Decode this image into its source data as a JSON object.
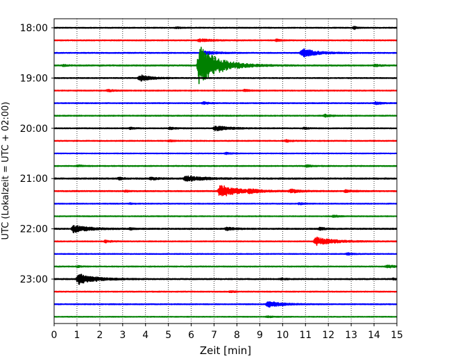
{
  "chart_data": {
    "type": "line",
    "subtype": "helicorder-seismogram",
    "xlabel": "Zeit  [min]",
    "ylabel": "UTC (Lokalzeit = UTC + 02:00)",
    "xlim": [
      0,
      15
    ],
    "x_ticks": [
      0,
      1,
      2,
      3,
      4,
      5,
      6,
      7,
      8,
      9,
      10,
      11,
      12,
      13,
      14,
      15
    ],
    "x_grid": "dotted vertical at each minute",
    "y_tick_labels": [
      "18:00",
      "19:00",
      "20:00",
      "21:00",
      "22:00",
      "23:00"
    ],
    "trace_minutes": 15,
    "trace_count": 24,
    "trace_color_cycle": [
      "#000000",
      "#ff0000",
      "#0000ff",
      "#008000"
    ],
    "traces": [
      {
        "start": "18:00",
        "noise": 0.1,
        "events": [
          {
            "t": 5.3,
            "amp": 0.25,
            "dur": 0.4
          },
          {
            "t": 13.1,
            "amp": 0.55,
            "dur": 0.25
          }
        ]
      },
      {
        "start": "18:15",
        "noise": 0.1,
        "events": [
          {
            "t": 6.3,
            "amp": 0.35,
            "dur": 1.2
          },
          {
            "t": 9.7,
            "amp": 0.35,
            "dur": 0.4
          }
        ]
      },
      {
        "start": "18:30",
        "noise": 0.1,
        "events": [
          {
            "t": 6.4,
            "amp": 0.5,
            "dur": 1.2
          },
          {
            "t": 10.8,
            "amp": 1.2,
            "dur": 1.3
          }
        ]
      },
      {
        "start": "18:45",
        "noise": 0.12,
        "events": [
          {
            "t": 0.4,
            "amp": 0.3,
            "dur": 0.3
          },
          {
            "t": 6.3,
            "amp": 5.5,
            "dur": 1.7
          },
          {
            "t": 14.0,
            "amp": 0.3,
            "dur": 0.5
          }
        ]
      },
      {
        "start": "19:00",
        "noise": 0.1,
        "events": [
          {
            "t": 3.7,
            "amp": 0.9,
            "dur": 1.0
          }
        ]
      },
      {
        "start": "19:15",
        "noise": 0.1,
        "events": [
          {
            "t": 2.3,
            "amp": 0.4,
            "dur": 0.5
          },
          {
            "t": 8.3,
            "amp": 0.35,
            "dur": 0.4
          }
        ]
      },
      {
        "start": "19:30",
        "noise": 0.1,
        "events": [
          {
            "t": 6.5,
            "amp": 0.35,
            "dur": 0.5
          },
          {
            "t": 14.0,
            "amp": 0.35,
            "dur": 0.6
          }
        ]
      },
      {
        "start": "19:45",
        "noise": 0.1,
        "events": [
          {
            "t": 11.8,
            "amp": 0.4,
            "dur": 0.5
          }
        ]
      },
      {
        "start": "20:00",
        "noise": 0.1,
        "events": [
          {
            "t": 3.3,
            "amp": 0.3,
            "dur": 0.4
          },
          {
            "t": 5.0,
            "amp": 0.35,
            "dur": 0.6
          },
          {
            "t": 7.0,
            "amp": 0.65,
            "dur": 1.3
          },
          {
            "t": 10.9,
            "amp": 0.3,
            "dur": 0.4
          }
        ]
      },
      {
        "start": "20:15",
        "noise": 0.1,
        "events": [
          {
            "t": 5.0,
            "amp": 0.25,
            "dur": 0.4
          },
          {
            "t": 10.1,
            "amp": 0.35,
            "dur": 0.5
          }
        ]
      },
      {
        "start": "20:30",
        "noise": 0.08,
        "events": [
          {
            "t": 7.5,
            "amp": 0.3,
            "dur": 0.4
          }
        ]
      },
      {
        "start": "20:45",
        "noise": 0.1,
        "events": [
          {
            "t": 1.0,
            "amp": 0.3,
            "dur": 0.4
          },
          {
            "t": 11.0,
            "amp": 0.35,
            "dur": 0.5
          }
        ]
      },
      {
        "start": "21:00",
        "noise": 0.14,
        "events": [
          {
            "t": 2.8,
            "amp": 0.35,
            "dur": 0.4
          },
          {
            "t": 4.2,
            "amp": 0.35,
            "dur": 0.6
          },
          {
            "t": 5.7,
            "amp": 0.75,
            "dur": 1.5
          }
        ]
      },
      {
        "start": "21:15",
        "noise": 0.12,
        "events": [
          {
            "t": 3.1,
            "amp": 0.3,
            "dur": 0.3
          },
          {
            "t": 7.2,
            "amp": 1.6,
            "dur": 1.6
          },
          {
            "t": 8.5,
            "amp": 0.35,
            "dur": 1.0
          },
          {
            "t": 10.3,
            "amp": 0.45,
            "dur": 1.0
          },
          {
            "t": 12.7,
            "amp": 0.3,
            "dur": 0.8
          }
        ]
      },
      {
        "start": "21:30",
        "noise": 0.09,
        "events": [
          {
            "t": 3.3,
            "amp": 0.25,
            "dur": 0.3
          },
          {
            "t": 10.7,
            "amp": 0.3,
            "dur": 0.4
          }
        ]
      },
      {
        "start": "21:45",
        "noise": 0.09,
        "events": [
          {
            "t": 12.2,
            "amp": 0.3,
            "dur": 0.5
          }
        ]
      },
      {
        "start": "22:00",
        "noise": 0.13,
        "events": [
          {
            "t": 0.8,
            "amp": 1.0,
            "dur": 1.3
          },
          {
            "t": 3.3,
            "amp": 0.35,
            "dur": 0.3
          },
          {
            "t": 7.5,
            "amp": 0.35,
            "dur": 0.8
          },
          {
            "t": 11.6,
            "amp": 0.45,
            "dur": 0.4
          }
        ]
      },
      {
        "start": "22:15",
        "noise": 0.1,
        "events": [
          {
            "t": 2.2,
            "amp": 0.35,
            "dur": 0.5
          },
          {
            "t": 11.4,
            "amp": 1.1,
            "dur": 1.6
          }
        ]
      },
      {
        "start": "22:30",
        "noise": 0.09,
        "events": [
          {
            "t": 12.8,
            "amp": 0.3,
            "dur": 0.5
          }
        ]
      },
      {
        "start": "22:45",
        "noise": 0.1,
        "events": [
          {
            "t": 1.0,
            "amp": 0.25,
            "dur": 0.3
          },
          {
            "t": 14.5,
            "amp": 0.35,
            "dur": 1.0
          }
        ]
      },
      {
        "start": "23:00",
        "noise": 0.12,
        "events": [
          {
            "t": 1.0,
            "amp": 1.4,
            "dur": 1.5
          },
          {
            "t": 9.9,
            "amp": 0.25,
            "dur": 0.4
          },
          {
            "t": 14.8,
            "amp": 0.3,
            "dur": 0.3
          }
        ]
      },
      {
        "start": "23:15",
        "noise": 0.1,
        "events": [
          {
            "t": 7.7,
            "amp": 0.3,
            "dur": 0.4
          }
        ]
      },
      {
        "start": "23:30",
        "noise": 0.1,
        "events": [
          {
            "t": 9.3,
            "amp": 0.8,
            "dur": 1.3
          }
        ]
      },
      {
        "start": "23:45",
        "noise": 0.08,
        "events": [
          {
            "t": 9.3,
            "amp": 0.2,
            "dur": 0.6
          }
        ]
      }
    ]
  }
}
